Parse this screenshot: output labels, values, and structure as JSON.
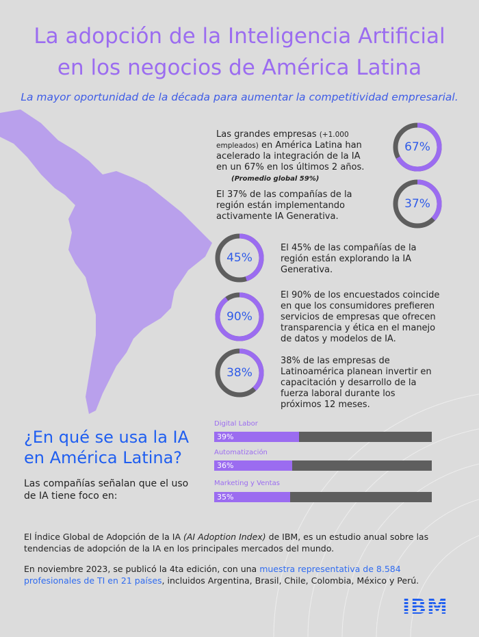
{
  "title": {
    "line1": "La adopción de la Inteligencia Artificial",
    "line2": "en los negocios de América Latina"
  },
  "subtitle": "La mayor oportunidad de la década para aumentar la competitividad empresarial.",
  "colors": {
    "accent_purple": "#9b6cf0",
    "accent_blue": "#1f5ef0",
    "ring_gray": "#5e5e5e",
    "map": "#b9a0ec",
    "background": "#dcdcdc"
  },
  "stats": [
    {
      "value": 67,
      "label": "67%",
      "text_a": "Las grandes empresas ",
      "text_small": "(+1.000 empleados)",
      "text_b": " en América Latina han acelerado la integración de la IA en un 67% en los últimos 2 años.",
      "note": "(Promedio global 59%)"
    },
    {
      "value": 37,
      "label": "37%",
      "text": "El 37% de las compañías de la región están implementando activamente IA Generativa."
    },
    {
      "value": 45,
      "label": "45%",
      "text": "El 45% de las compañías de la región están explorando la IA Generativa."
    },
    {
      "value": 90,
      "label": "90%",
      "text": "El 90% de los encuestados coincide en que los consumidores prefieren servicios de empresas que ofrecen transparencia y ética en el manejo de datos y modelos de IA."
    },
    {
      "value": 38,
      "label": "38%",
      "text": "38% de las empresas de Latinoamérica planean invertir en capacitación y desarrollo de la fuerza laboral durante los próximos 12 meses."
    }
  ],
  "usage": {
    "heading_line1": "¿En qué se usa la IA",
    "heading_line2": "en América Latina?",
    "description": "Las compañías señalan que el uso de IA tiene foco en:",
    "bars": [
      {
        "label": "Digital Labor",
        "value": 39,
        "value_label": "39%"
      },
      {
        "label": "Automatización",
        "value": 36,
        "value_label": "36%"
      },
      {
        "label": "Marketing y Ventas",
        "value": 35,
        "value_label": "35%"
      }
    ]
  },
  "footer": {
    "p1_a": "El Índice Global de Adopción de la IA ",
    "p1_em": "(AI Adoption Index)",
    "p1_b": " de IBM, es un estudio anual sobre las tendencias de adopción de la IA en los principales mercados del mundo.",
    "p2_a": "En noviembre 2023, se publicó la 4ta edición, con una ",
    "p2_link": "muestra representativa de 8.584 profesionales de TI en 21 países",
    "p2_b": ", incluidos Argentina, Brasil, Chile, Colombia, México y Perú."
  },
  "logo": "IBM"
}
